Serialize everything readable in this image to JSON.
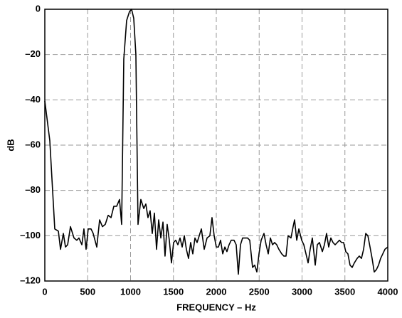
{
  "chart_data": {
    "type": "line",
    "xlabel": "FREQUENCY – Hz",
    "ylabel": "dB",
    "x": [
      0,
      58,
      116,
      158,
      183,
      216,
      241,
      266,
      299,
      340,
      373,
      398,
      432,
      456,
      481,
      506,
      539,
      564,
      606,
      639,
      672,
      705,
      739,
      772,
      805,
      838,
      871,
      896,
      921,
      954,
      988,
      1012,
      1037,
      1062,
      1087,
      1120,
      1154,
      1178,
      1203,
      1228,
      1253,
      1278,
      1303,
      1328,
      1353,
      1378,
      1402,
      1427,
      1452,
      1477,
      1502,
      1527,
      1552,
      1577,
      1602,
      1627,
      1651,
      1676,
      1701,
      1726,
      1751,
      1776,
      1801,
      1826,
      1859,
      1892,
      1925,
      1950,
      1975,
      2000,
      2025,
      2050,
      2075,
      2100,
      2124,
      2149,
      2174,
      2207,
      2232,
      2257,
      2282,
      2307,
      2340,
      2365,
      2390,
      2423,
      2448,
      2473,
      2498,
      2523,
      2556,
      2581,
      2606,
      2631,
      2656,
      2680,
      2705,
      2730,
      2763,
      2788,
      2813,
      2838,
      2871,
      2896,
      2913,
      2938,
      2963,
      2996,
      3021,
      3046,
      3071,
      3095,
      3120,
      3154,
      3178,
      3203,
      3237,
      3261,
      3286,
      3311,
      3336,
      3361,
      3386,
      3411,
      3436,
      3461,
      3485,
      3510,
      3535,
      3560,
      3585,
      3610,
      3643,
      3668,
      3693,
      3718,
      3743,
      3768,
      3793,
      3817,
      3842,
      3867,
      3892,
      3917,
      3942,
      3967,
      4000
    ],
    "series": [
      {
        "color": "#000000",
        "values": [
          -40.5,
          -58,
          -97,
          -98,
          -106,
          -99,
          -105,
          -104,
          -96,
          -101,
          -102,
          -101,
          -104,
          -97,
          -106,
          -97,
          -97,
          -99,
          -105,
          -93,
          -96,
          -95,
          -91,
          -92,
          -87,
          -87,
          -84,
          -95,
          -22,
          -5,
          -1,
          0,
          -4,
          -20,
          -95,
          -84,
          -88,
          -86,
          -92,
          -89,
          -99,
          -90,
          -106,
          -93,
          -101,
          -94,
          -109,
          -95,
          -102,
          -112,
          -103,
          -102,
          -104,
          -101,
          -105,
          -100,
          -106,
          -110,
          -103,
          -108,
          -101,
          -103,
          -100,
          -97,
          -106,
          -101,
          -100,
          -92,
          -100,
          -105,
          -105,
          -102,
          -108,
          -105,
          -107,
          -104,
          -102,
          -102,
          -104,
          -117,
          -104,
          -101,
          -101,
          -101,
          -102,
          -114,
          -113,
          -116,
          -108,
          -102,
          -99,
          -104,
          -108,
          -101,
          -104,
          -103,
          -104,
          -106,
          -108,
          -109,
          -109,
          -100,
          -101,
          -96,
          -93,
          -102,
          -97,
          -102,
          -104,
          -108,
          -112,
          -106,
          -101,
          -113,
          -104,
          -103,
          -107,
          -104,
          -99,
          -105,
          -101,
          -103,
          -104,
          -103,
          -102,
          -103,
          -103,
          -107,
          -108,
          -113,
          -114,
          -112,
          -110,
          -109,
          -110,
          -106,
          -99,
          -100,
          -105,
          -110,
          -116,
          -115,
          -113,
          -110,
          -108,
          -106,
          -105
        ]
      }
    ],
    "xlim": [
      0,
      4000
    ],
    "xticks": [
      0,
      500,
      1000,
      1500,
      2000,
      2500,
      3000,
      3500,
      4000
    ],
    "ylim": [
      -120,
      0
    ],
    "yticks": [
      {
        "value": -120,
        "label": "–120"
      },
      {
        "value": -100,
        "label": "–100"
      },
      {
        "value": -80,
        "label": "–80"
      },
      {
        "value": -60,
        "label": "–60"
      },
      {
        "value": -40,
        "label": "–40"
      },
      {
        "value": -20,
        "label": "–20"
      },
      0
    ],
    "grid": true
  }
}
